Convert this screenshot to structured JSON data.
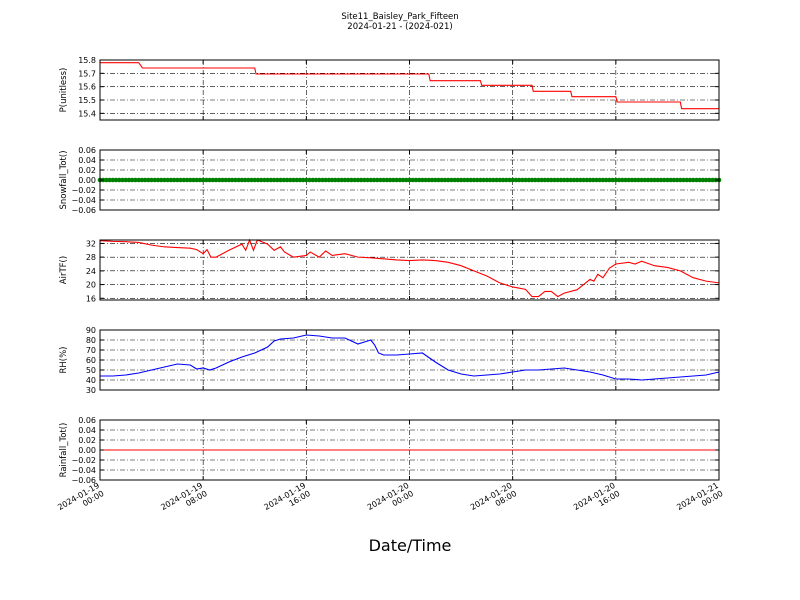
{
  "title": "Site11_Baisley_Park_Fifteen",
  "subtitle": "2024-01-21 - (2024-021)",
  "xlabel": "Date/Time",
  "x_tick_labels": [
    [
      "2024-01-19",
      "00:00"
    ],
    [
      "2024-01-19",
      "08:00"
    ],
    [
      "2024-01-19",
      "16:00"
    ],
    [
      "2024-01-20",
      "00:00"
    ],
    [
      "2024-01-20",
      "08:00"
    ],
    [
      "2024-01-20",
      "16:00"
    ],
    [
      "2024-01-21",
      "00:00"
    ]
  ],
  "colors": {
    "red": "#ff0000",
    "green": "#008000",
    "blue": "#0000ff",
    "grid": "#000000"
  },
  "chart_data": [
    {
      "type": "line",
      "ylabel": "P(unitless)",
      "ylim": [
        15.35,
        15.8
      ],
      "yticks": [
        15.4,
        15.5,
        15.6,
        15.7,
        15.8
      ],
      "ytick_labels": [
        "15.4",
        "15.5",
        "15.6",
        "15.7",
        "15.8"
      ],
      "grid": true,
      "series": [
        {
          "color": "red",
          "points": [
            [
              0,
              15.78
            ],
            [
              3,
              15.78
            ],
            [
              3.3,
              15.74
            ],
            [
              12,
              15.74
            ],
            [
              12.1,
              15.695
            ],
            [
              25.5,
              15.695
            ],
            [
              25.6,
              15.645
            ],
            [
              29.5,
              15.645
            ],
            [
              29.6,
              15.61
            ],
            [
              33.5,
              15.61
            ],
            [
              33.6,
              15.565
            ],
            [
              36.5,
              15.565
            ],
            [
              36.6,
              15.525
            ],
            [
              40,
              15.525
            ],
            [
              40.1,
              15.485
            ],
            [
              45,
              15.485
            ],
            [
              45.1,
              15.435
            ],
            [
              48,
              15.435
            ]
          ]
        }
      ]
    },
    {
      "type": "scatter",
      "ylabel": "Snowfall_Tot()",
      "ylim": [
        -0.06,
        0.06
      ],
      "yticks": [
        -0.06,
        -0.04,
        -0.02,
        0.0,
        0.02,
        0.04,
        0.06
      ],
      "ytick_labels": [
        "−0.06",
        "−0.04",
        "−0.02",
        "0.00",
        "0.02",
        "0.04",
        "0.06"
      ],
      "grid": true,
      "series": [
        {
          "color": "green",
          "constant": 0.0,
          "step_hours": 0.25
        }
      ]
    },
    {
      "type": "line",
      "ylabel": "AirTF()",
      "ylim": [
        15.5,
        33
      ],
      "yticks": [
        16,
        20,
        24,
        28,
        32
      ],
      "ytick_labels": [
        "16",
        "20",
        "24",
        "28",
        "32"
      ],
      "grid": true,
      "series": [
        {
          "color": "red",
          "points": [
            [
              0,
              32.8
            ],
            [
              1,
              32.6
            ],
            [
              2,
              32.5
            ],
            [
              3,
              32.3
            ],
            [
              4,
              31.5
            ],
            [
              5,
              31
            ],
            [
              6,
              30.8
            ],
            [
              7,
              30.6
            ],
            [
              7.5,
              30.2
            ],
            [
              8,
              29
            ],
            [
              8.3,
              30.2
            ],
            [
              8.6,
              28
            ],
            [
              9,
              28
            ],
            [
              10,
              30
            ],
            [
              11,
              31.8
            ],
            [
              11.3,
              30
            ],
            [
              11.6,
              33
            ],
            [
              11.9,
              30
            ],
            [
              12.2,
              33
            ],
            [
              13,
              31.8
            ],
            [
              13.5,
              30
            ],
            [
              14,
              31
            ],
            [
              14.3,
              29.5
            ],
            [
              15,
              28
            ],
            [
              16,
              28.5
            ],
            [
              16.3,
              29.5
            ],
            [
              17,
              28
            ],
            [
              17.5,
              29.8
            ],
            [
              18,
              28.5
            ],
            [
              19,
              29
            ],
            [
              20,
              28
            ],
            [
              21,
              27.8
            ],
            [
              22,
              27.5
            ],
            [
              23,
              27.2
            ],
            [
              24,
              27
            ],
            [
              25,
              27.2
            ],
            [
              26,
              27
            ],
            [
              27,
              26.5
            ],
            [
              28,
              25.5
            ],
            [
              29,
              24
            ],
            [
              30,
              22.5
            ],
            [
              31,
              20.5
            ],
            [
              32,
              19.3
            ],
            [
              33,
              18.6
            ],
            [
              33.5,
              16.5
            ],
            [
              34,
              16.5
            ],
            [
              34.5,
              18
            ],
            [
              35,
              18
            ],
            [
              35.5,
              16.5
            ],
            [
              36,
              17.5
            ],
            [
              37,
              18.5
            ],
            [
              37.5,
              20
            ],
            [
              38,
              21.5
            ],
            [
              38.3,
              21
            ],
            [
              38.6,
              23
            ],
            [
              39,
              22
            ],
            [
              39.5,
              24.8
            ],
            [
              40,
              26
            ],
            [
              41,
              26.5
            ],
            [
              41.5,
              26
            ],
            [
              42,
              26.8
            ],
            [
              43,
              25.5
            ],
            [
              44,
              25
            ],
            [
              45,
              24
            ],
            [
              46,
              22
            ],
            [
              47,
              21
            ],
            [
              48,
              20.5
            ]
          ]
        }
      ]
    },
    {
      "type": "line",
      "ylabel": "RH(%)",
      "ylim": [
        30,
        90
      ],
      "yticks": [
        30,
        40,
        50,
        60,
        70,
        80,
        90
      ],
      "ytick_labels": [
        "30",
        "40",
        "50",
        "60",
        "70",
        "80",
        "90"
      ],
      "grid": true,
      "series": [
        {
          "color": "blue",
          "points": [
            [
              0,
              44
            ],
            [
              1,
              44
            ],
            [
              2,
              45
            ],
            [
              3,
              47
            ],
            [
              4,
              50
            ],
            [
              5,
              53
            ],
            [
              6,
              56
            ],
            [
              7,
              55
            ],
            [
              7.5,
              51
            ],
            [
              8,
              52
            ],
            [
              8.5,
              50
            ],
            [
              9,
              52
            ],
            [
              10,
              58
            ],
            [
              11,
              63
            ],
            [
              12,
              67
            ],
            [
              13,
              73
            ],
            [
              13.5,
              79
            ],
            [
              14,
              81
            ],
            [
              15,
              82
            ],
            [
              16,
              85
            ],
            [
              17,
              84
            ],
            [
              18,
              82
            ],
            [
              19,
              82
            ],
            [
              20,
              76
            ],
            [
              21,
              80
            ],
            [
              21.3,
              75
            ],
            [
              21.6,
              67
            ],
            [
              22,
              65
            ],
            [
              23,
              65
            ],
            [
              24,
              66
            ],
            [
              25,
              67
            ],
            [
              26,
              58
            ],
            [
              27,
              50
            ],
            [
              28,
              46
            ],
            [
              29,
              44
            ],
            [
              30,
              45
            ],
            [
              31,
              46
            ],
            [
              32,
              48
            ],
            [
              33,
              50
            ],
            [
              34,
              50
            ],
            [
              35,
              51
            ],
            [
              36,
              52
            ],
            [
              37,
              50
            ],
            [
              38,
              48
            ],
            [
              39,
              45
            ],
            [
              40,
              41
            ],
            [
              41,
              41
            ],
            [
              42,
              40
            ],
            [
              43,
              41
            ],
            [
              44,
              42
            ],
            [
              45,
              43
            ],
            [
              46,
              44
            ],
            [
              47,
              45
            ],
            [
              48,
              48
            ]
          ]
        }
      ]
    },
    {
      "type": "line",
      "ylabel": "Rainfall_Tot()",
      "ylim": [
        -0.06,
        0.06
      ],
      "yticks": [
        -0.06,
        -0.04,
        -0.02,
        0.0,
        0.02,
        0.04,
        0.06
      ],
      "ytick_labels": [
        "−0.06",
        "−0.04",
        "−0.02",
        "0.00",
        "0.02",
        "0.04",
        "0.06"
      ],
      "grid": true,
      "series": [
        {
          "color": "red",
          "points": [
            [
              0,
              0
            ],
            [
              48,
              0
            ]
          ]
        }
      ]
    }
  ],
  "x_axis": {
    "range_hours": [
      0,
      48
    ],
    "tick_hours": [
      0,
      8,
      16,
      24,
      32,
      40,
      48
    ]
  }
}
